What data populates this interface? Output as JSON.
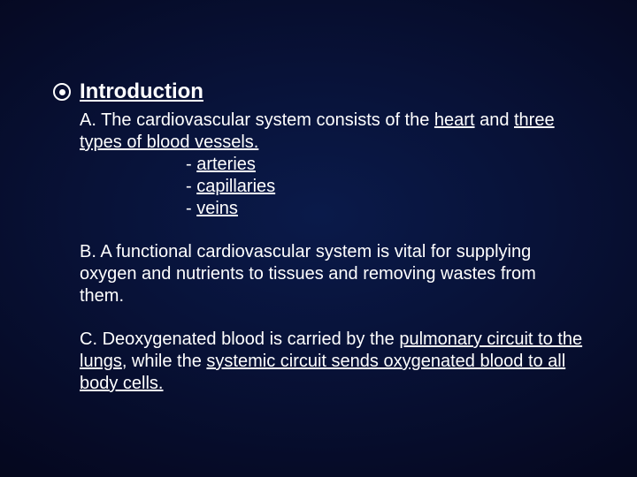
{
  "heading": "Introduction",
  "sectionA": {
    "prefix": "A.   ",
    "beforeU1": "The cardiovascular system consists of the ",
    "u1": "heart",
    "between": " and ",
    "u2": "three types of blood vessels.",
    "vessels": [
      {
        "dash": "- ",
        "name": "arteries"
      },
      {
        "dash": "- ",
        "name": "capillaries"
      },
      {
        "dash": "- ",
        "name": "veins"
      }
    ]
  },
  "sectionB": {
    "prefix": "B.   ",
    "text": "A functional cardiovascular system is vital for supplying oxygen and nutrients to tissues and removing wastes from them."
  },
  "sectionC": {
    "prefix": "C.  ",
    "t1": "Deoxygenated blood is carried by the ",
    "u1": "pulmonary circuit to the lungs",
    "t2": ", while the ",
    "u2": "systemic circuit sends oxygenated blood to all body cells."
  },
  "colors": {
    "text": "#ffffff",
    "bg_center": "#0a1a4a",
    "bg_edge": "#000000"
  },
  "fontsize": {
    "heading": 24,
    "body": 20
  }
}
